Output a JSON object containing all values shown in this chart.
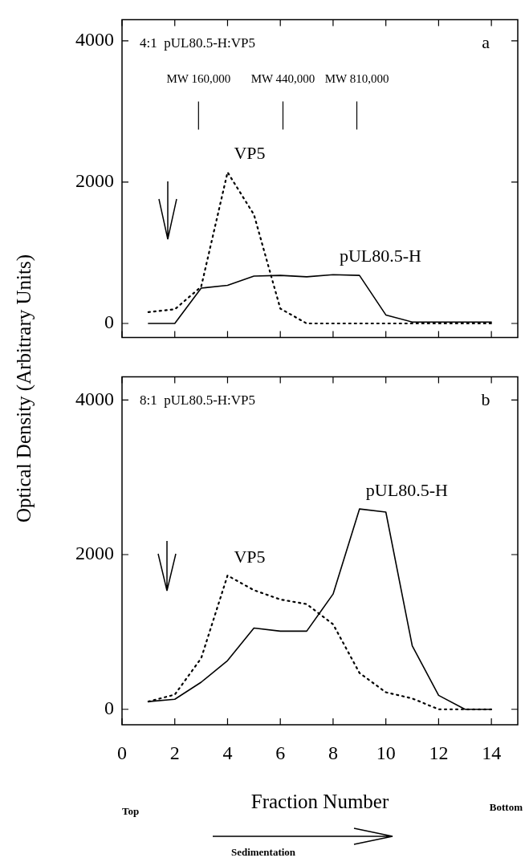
{
  "chart_data": [
    {
      "type": "line",
      "title": "4:1  pUL80.5-H:VP5",
      "ylabel": "Optical Density (Arbitrary Units)",
      "x": [
        1,
        2,
        3,
        4,
        5,
        6,
        7,
        8,
        9,
        10,
        11,
        12,
        13,
        14
      ],
      "series": [
        {
          "name": "pUL80.5-H",
          "color": "#000000",
          "line_style": "solid",
          "values": [
            0,
            0,
            500,
            540,
            670,
            680,
            660,
            690,
            680,
            120,
            20,
            20,
            20,
            20
          ]
        },
        {
          "name": "VP5",
          "color": "#000000",
          "line_style": "dotted",
          "values": [
            160,
            200,
            520,
            2140,
            1540,
            210,
            0,
            0,
            0,
            0,
            0,
            0,
            0,
            0
          ]
        }
      ],
      "xlim": [
        0,
        15
      ],
      "xticks": [
        0,
        2,
        4,
        6,
        8,
        10,
        12,
        14
      ],
      "ylim": [
        -200,
        4300
      ],
      "yticks": [
        0,
        2000,
        4000
      ],
      "tick_labels": "y",
      "grid": false,
      "legend": false,
      "marker": "none",
      "annotations": [
        "a"
      ],
      "ref_lines": [
        {
          "axis": "x",
          "value": 2.9,
          "label": "MW 160,000"
        },
        {
          "axis": "x",
          "value": 6.1,
          "label": "MW 440,000"
        },
        {
          "axis": "x",
          "value": 8.9,
          "label": "MW 810,000"
        }
      ]
    },
    {
      "type": "line",
      "title": "8:1  pUL80.5-H:VP5",
      "xlabel": "Fraction Number",
      "x": [
        1,
        2,
        3,
        4,
        5,
        6,
        7,
        8,
        9,
        10,
        11,
        12,
        13,
        14
      ],
      "series": [
        {
          "name": "pUL80.5-H",
          "color": "#000000",
          "line_style": "solid",
          "values": [
            100,
            130,
            350,
            630,
            1050,
            1010,
            1010,
            1490,
            2590,
            2550,
            820,
            180,
            0,
            0
          ]
        },
        {
          "name": "VP5",
          "color": "#000000",
          "line_style": "dotted",
          "values": [
            100,
            190,
            660,
            1730,
            1540,
            1420,
            1360,
            1100,
            470,
            220,
            140,
            0,
            0,
            0
          ]
        }
      ],
      "xlim": [
        0,
        15
      ],
      "xticks": [
        0,
        2,
        4,
        6,
        8,
        10,
        12,
        14
      ],
      "ylim": [
        -200,
        4300
      ],
      "yticks": [
        0,
        2000,
        4000
      ],
      "grid": false,
      "legend": false,
      "marker": "none",
      "annotations": [
        "b",
        "Top",
        "Bottom",
        "Sedimentation"
      ]
    }
  ]
}
